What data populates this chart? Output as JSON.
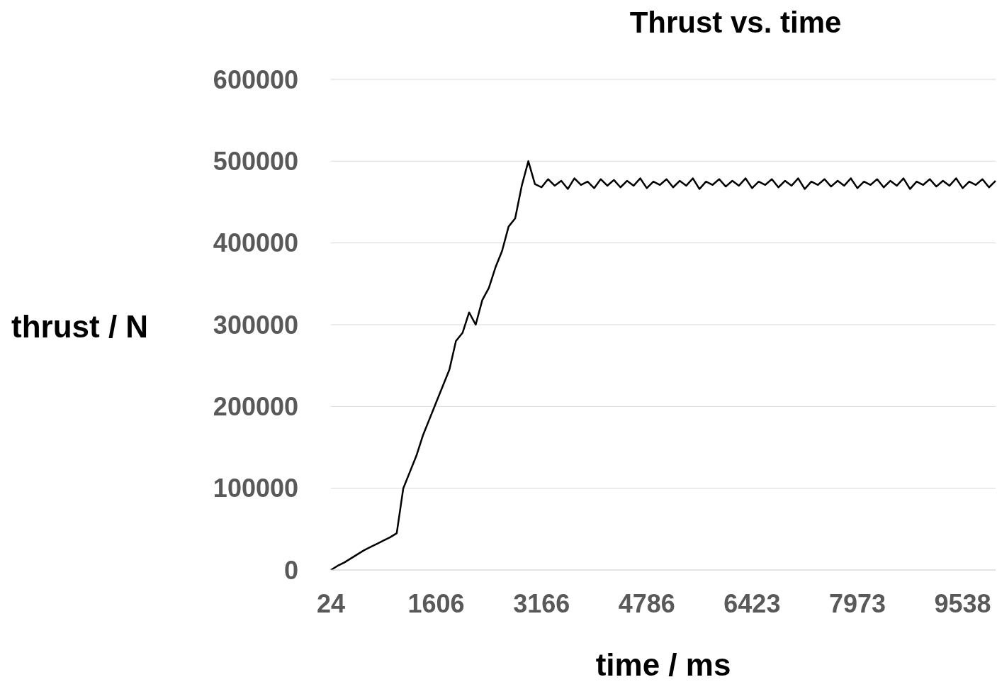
{
  "chart_data": {
    "type": "line",
    "title": "Thrust vs. time",
    "xlabel": "time / ms",
    "ylabel": "thrust / N",
    "categories": [
      "24",
      null,
      null,
      null,
      null,
      null,
      null,
      null,
      null,
      null,
      null,
      null,
      null,
      null,
      null,
      null,
      "1606",
      null,
      null,
      null,
      null,
      null,
      null,
      null,
      null,
      null,
      null,
      null,
      null,
      null,
      null,
      null,
      "3166",
      null,
      null,
      null,
      null,
      null,
      null,
      null,
      null,
      null,
      null,
      null,
      null,
      null,
      null,
      null,
      "4786",
      null,
      null,
      null,
      null,
      null,
      null,
      null,
      null,
      null,
      null,
      null,
      null,
      null,
      null,
      null,
      "6423",
      null,
      null,
      null,
      null,
      null,
      null,
      null,
      null,
      null,
      null,
      null,
      null,
      null,
      null,
      null,
      "7973",
      null,
      null,
      null,
      null,
      null,
      null,
      null,
      null,
      null,
      null,
      null,
      null,
      null,
      null,
      null,
      "9538",
      null,
      null,
      null,
      null,
      null
    ],
    "series": [
      {
        "color": "#000000",
        "values": [
          0,
          5000,
          9000,
          14000,
          19000,
          24000,
          28000,
          32000,
          36000,
          40000,
          45000,
          100000,
          120000,
          140000,
          165000,
          185000,
          205000,
          225000,
          245000,
          280000,
          290000,
          315000,
          300000,
          330000,
          345000,
          370000,
          390000,
          420000,
          430000,
          470000,
          500000,
          472000,
          468000,
          478000,
          470000,
          476000,
          466000,
          479000,
          471000,
          475000,
          467000,
          478000,
          470000,
          477000,
          468000,
          476000,
          470000,
          479000,
          467000,
          475000,
          471000,
          478000,
          468000,
          476000,
          470000,
          479000,
          466000,
          475000,
          471000,
          478000,
          469000,
          476000,
          470000,
          479000,
          467000,
          475000,
          471000,
          478000,
          468000,
          476000,
          470000,
          479000,
          466000,
          475000,
          471000,
          478000,
          469000,
          476000,
          470000,
          479000,
          467000,
          475000,
          471000,
          478000,
          468000,
          476000,
          470000,
          479000,
          466000,
          475000,
          471000,
          478000,
          469000,
          476000,
          470000,
          479000,
          467000,
          475000,
          471000,
          478000,
          468000,
          476000
        ]
      }
    ],
    "ylim": [
      0,
      600000
    ],
    "yticks": [
      0,
      100000,
      200000,
      300000,
      400000,
      500000,
      600000
    ],
    "grid": "y",
    "marker": "none",
    "line_style": "solid"
  }
}
